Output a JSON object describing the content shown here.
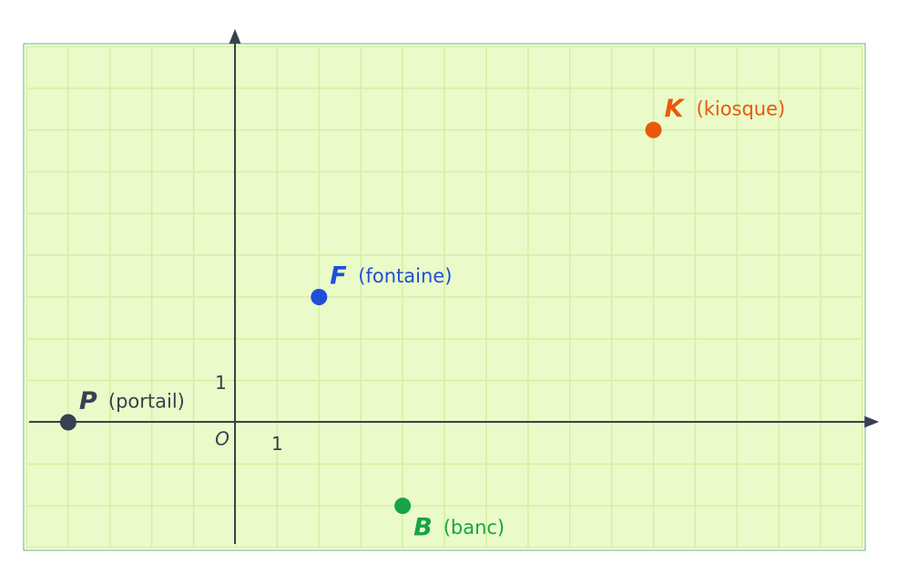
{
  "chart_data": {
    "type": "scatter",
    "origin_label": "O",
    "xlim": [
      -5,
      15
    ],
    "ylim": [
      -3,
      9
    ],
    "xticks": [
      1
    ],
    "yticks": [
      1
    ],
    "grid": true,
    "series": [
      {
        "name": "P",
        "note": "(portail)",
        "color": "#374151",
        "x": [
          -4
        ],
        "values": [
          0
        ]
      },
      {
        "name": "F",
        "note": "(fontaine)",
        "color": "#1f4fd8",
        "x": [
          2
        ],
        "values": [
          3
        ]
      },
      {
        "name": "K",
        "note": "(kiosque)",
        "color": "#e8590c",
        "x": [
          10
        ],
        "values": [
          7
        ]
      },
      {
        "name": "B",
        "note": "(banc)",
        "color": "#16a34a",
        "x": [
          4
        ],
        "values": [
          -2
        ]
      }
    ]
  }
}
